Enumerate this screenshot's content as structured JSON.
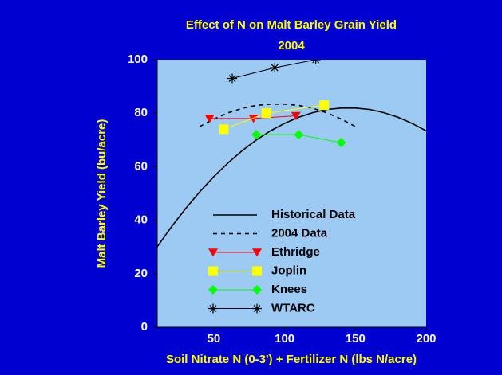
{
  "chart_data": {
    "type": "line",
    "title": "Effect of N on Malt Barley Grain Yield",
    "subtitle": "2004",
    "x_label": "Soil Nitrate N (0-3') + Fertilizer N (lbs N/acre)",
    "y_label": "Malt Barley Yield (bu/acre)",
    "xlim": [
      10,
      200
    ],
    "xticks": [
      50,
      100,
      150,
      200
    ],
    "ylim": [
      0,
      100
    ],
    "yticks": [
      0,
      20,
      40,
      60,
      80,
      100
    ],
    "series": [
      {
        "name": "Historical Data",
        "color": "#000000",
        "dash": "solid",
        "marker": "none",
        "x": [
          10,
          20,
          30,
          40,
          50,
          60,
          70,
          80,
          90,
          100,
          110,
          120,
          130,
          140,
          150,
          160,
          170,
          180,
          190,
          200
        ],
        "values": [
          30.1,
          37.5,
          44.3,
          50.6,
          56.3,
          61.4,
          66.0,
          70.0,
          73.4,
          76.2,
          78.5,
          80.2,
          81.4,
          81.9,
          81.9,
          81.4,
          80.2,
          78.5,
          76.2,
          73.4
        ]
      },
      {
        "name": "2004 Data",
        "color": "#000000",
        "dash": "dashed",
        "marker": "none",
        "x": [
          40,
          50,
          60,
          70,
          80,
          90,
          100,
          110,
          120,
          130,
          140,
          150
        ],
        "values": [
          75.0,
          77.8,
          80.1,
          81.8,
          82.9,
          83.4,
          83.4,
          82.9,
          81.8,
          80.1,
          77.8,
          75.0
        ]
      },
      {
        "name": "Ethridge",
        "color": "#ff0000",
        "dash": "solid",
        "marker": "triangle-down",
        "x": [
          47,
          78,
          108
        ],
        "values": [
          78,
          78,
          79
        ]
      },
      {
        "name": "Joplin",
        "color": "#ffff00",
        "dash": "solid",
        "marker": "square",
        "x": [
          57,
          87,
          128
        ],
        "values": [
          74,
          80,
          83
        ]
      },
      {
        "name": "Knees",
        "color": "#00ff00",
        "dash": "solid",
        "marker": "diamond",
        "x": [
          80,
          110,
          140
        ],
        "values": [
          72,
          72,
          69
        ]
      },
      {
        "name": "WTARC",
        "color": "#000000",
        "dash": "solid",
        "marker": "asterisk",
        "x": [
          63,
          93,
          122
        ],
        "values": [
          93,
          97,
          100
        ]
      }
    ]
  }
}
